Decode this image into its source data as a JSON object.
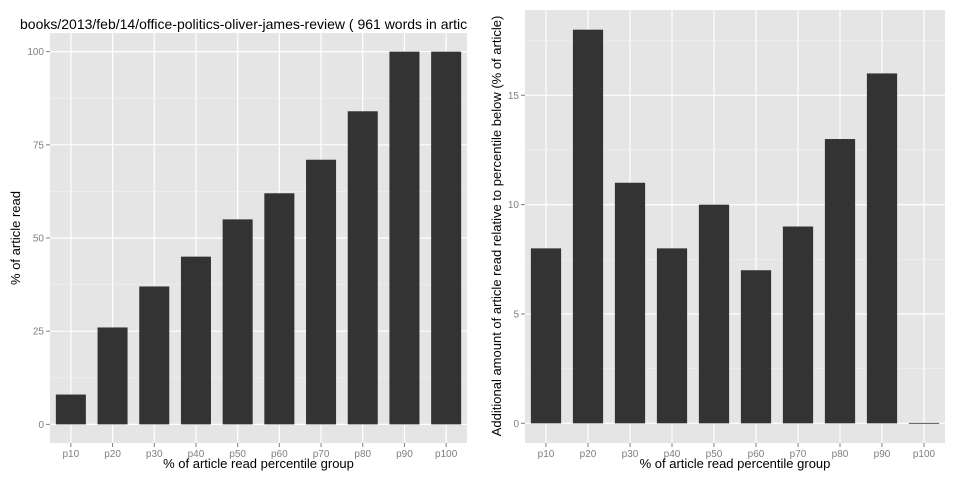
{
  "chart_data": [
    {
      "type": "bar",
      "title": "books/2013/feb/14/office-politics-oliver-james-review ( 961 words in artic",
      "xlabel": "% of article read percentile group",
      "ylabel": "% of article read",
      "categories": [
        "p10",
        "p20",
        "p30",
        "p40",
        "p50",
        "p60",
        "p70",
        "p80",
        "p90",
        "p100"
      ],
      "values": [
        8,
        26,
        37,
        45,
        55,
        62,
        71,
        84,
        100,
        100
      ],
      "ylim": [
        -5,
        105
      ],
      "yticks": [
        0,
        25,
        50,
        75,
        100
      ],
      "ytick_labels": [
        "0",
        "25",
        "50",
        "75",
        "100"
      ],
      "grid": true
    },
    {
      "type": "bar",
      "title": "",
      "xlabel": "% of article read percentile group",
      "ylabel": "Additional amount of article read relative to percentile below (% of article)",
      "categories": [
        "p10",
        "p20",
        "p30",
        "p40",
        "p50",
        "p60",
        "p70",
        "p80",
        "p90",
        "p100"
      ],
      "values": [
        8,
        18,
        11,
        8,
        10,
        7,
        9,
        13,
        16,
        0
      ],
      "ylim": [
        -0.9,
        18.9
      ],
      "yticks": [
        0,
        5,
        10,
        15
      ],
      "ytick_labels": [
        "0",
        "5",
        "10",
        "15"
      ],
      "grid": true
    }
  ],
  "colors": {
    "panel": "#e5e5e5",
    "grid_major": "#ffffff",
    "grid_minor": "#f2f2f2",
    "bar": "#333333"
  }
}
